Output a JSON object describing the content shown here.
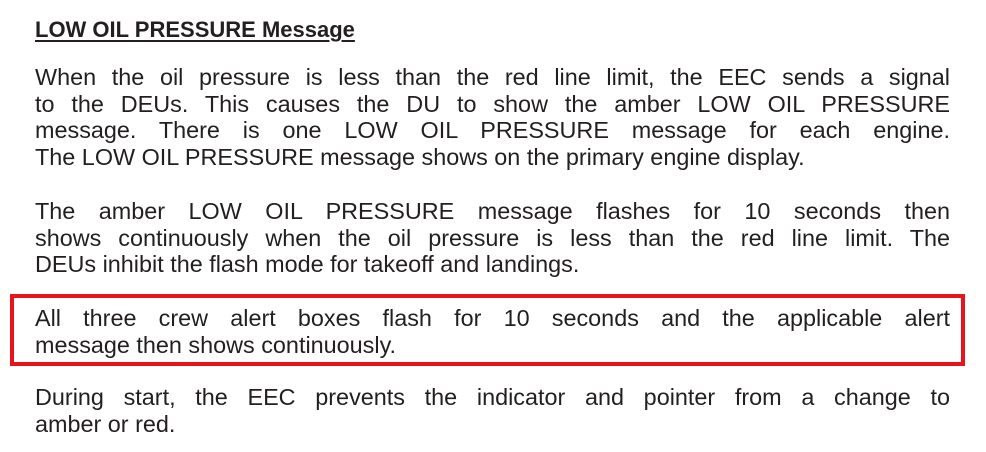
{
  "heading": "LOW OIL PRESSURE Message",
  "paragraphs": [
    {
      "lines": [
        "When the oil pressure is less than the red line limit, the EEC sends a signal",
        "to the DEUs. This causes the DU to show the amber LOW OIL PRESSURE",
        "message. There is one LOW OIL PRESSURE message for each engine.",
        "The LOW OIL PRESSURE message shows on the primary engine display."
      ]
    },
    {
      "lines": [
        "The amber LOW OIL PRESSURE message flashes for 10 seconds then",
        "shows continuously when the oil pressure is less than the red line limit. The",
        "DEUs inhibit the flash mode for takeoff and landings."
      ]
    },
    {
      "lines": [
        "All three crew alert boxes flash for 10 seconds and the applicable alert",
        "message then shows continuously."
      ]
    },
    {
      "lines": [
        "During start, the EEC prevents the indicator and pointer from a change to",
        "amber or red."
      ]
    }
  ],
  "highlight_color": "#e8141b",
  "text_color": "#231f20"
}
